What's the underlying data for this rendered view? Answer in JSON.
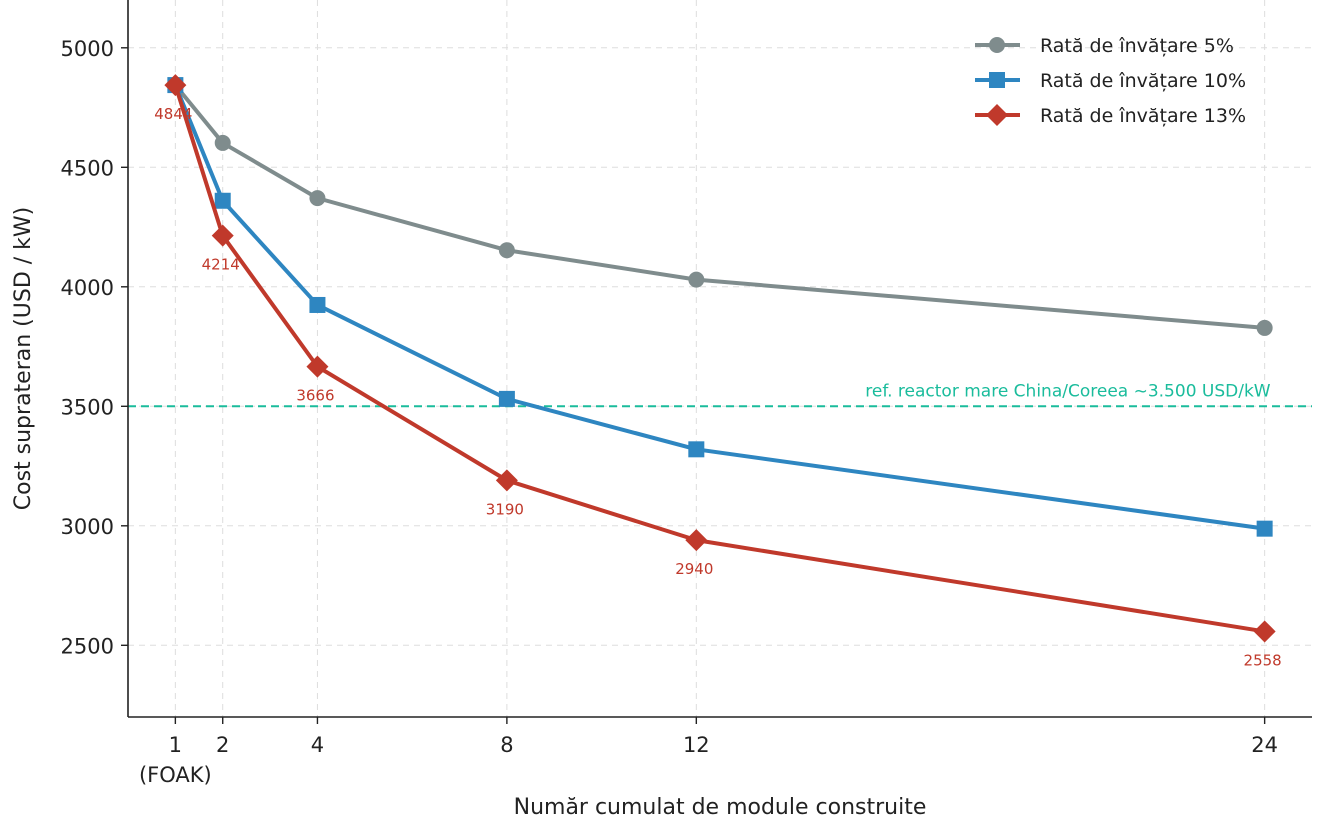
{
  "chart_data": {
    "type": "line",
    "title": "",
    "xlabel": "Număr cumulat de module construite",
    "ylabel": "Cost suprateran (USD / kW)",
    "x": [
      1,
      2,
      4,
      8,
      12,
      24
    ],
    "x_tick_labels": [
      "1",
      "2",
      "4",
      "8",
      "12",
      "24"
    ],
    "x_first_tick_sublabel": "(FOAK)",
    "y_ticks": [
      2500,
      3000,
      3500,
      4000,
      4500,
      5000
    ],
    "xlim": [
      0,
      25
    ],
    "ylim": [
      2200,
      5200
    ],
    "grid": true,
    "legend_position": "top-right",
    "series": [
      {
        "name": "Rată de învățare 5%",
        "color": "#7f8c8d",
        "marker": "circle",
        "values": [
          4844,
          4602,
          4371,
          4153,
          4030,
          3828
        ]
      },
      {
        "name": "Rată de învățare 10%",
        "color": "#2e86c1",
        "marker": "square",
        "values": [
          4844,
          4360,
          3924,
          3531,
          3320,
          2988
        ]
      },
      {
        "name": "Rată de învățare 13%",
        "color": "#c0392b",
        "marker": "diamond",
        "values": [
          4844,
          4214,
          3666,
          3190,
          2940,
          2558
        ],
        "data_labels": [
          "4844",
          "4214",
          "3666",
          "3190",
          "2940",
          "2558"
        ]
      }
    ],
    "reference_line": {
      "y": 3500,
      "label": "ref. reactor mare China/Coreea ~3.500 USD/kW",
      "color": "#1abc9c"
    }
  }
}
